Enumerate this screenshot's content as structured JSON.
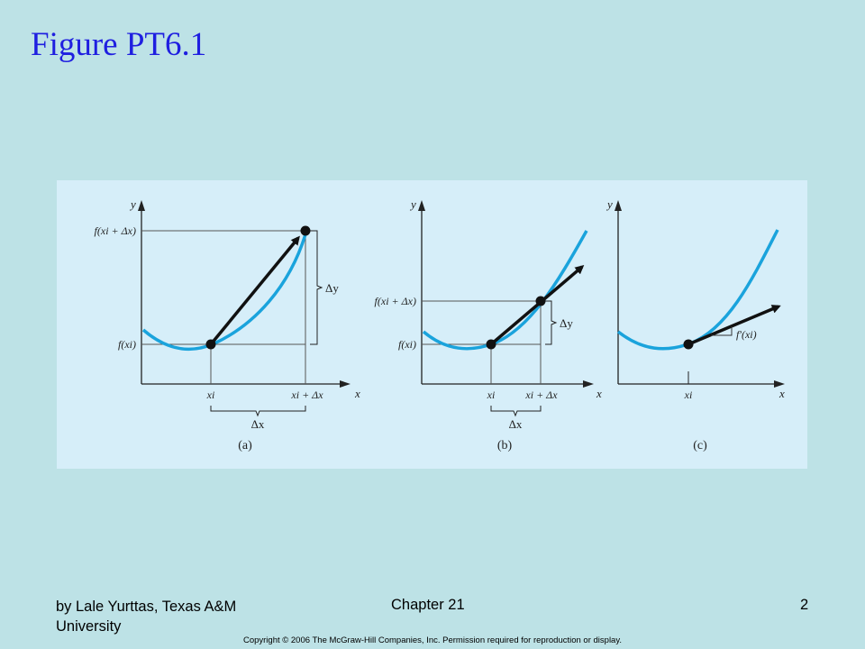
{
  "slide": {
    "title": "Figure PT6.1",
    "footer": {
      "author": "by Lale Yurttas, Texas A&M University",
      "chapter": "Chapter 21",
      "page": "2"
    },
    "copyright": "Copyright © 2006 The McGraw-Hill Companies, Inc. Permission required for reproduction or display."
  },
  "figure": {
    "colors": {
      "curve": "#1aa3dc",
      "ink": "#111111",
      "panel_bg": "#d6eef9"
    },
    "panel_a": {
      "caption": "(a)",
      "axis_x": "x",
      "axis_y": "y",
      "y_tick_top": "f(xi + Δx)",
      "y_tick_bottom": "f(xi)",
      "x_tick_left": "xi",
      "x_tick_right": "xi + Δx",
      "delta_x": "Δx",
      "delta_y": "Δy"
    },
    "panel_b": {
      "caption": "(b)",
      "axis_x": "x",
      "axis_y": "y",
      "y_tick_top": "f(xi + Δx)",
      "y_tick_bottom": "f(xi)",
      "x_tick_left": "xi",
      "x_tick_right": "xi + Δx",
      "delta_x": "Δx",
      "delta_y": "Δy"
    },
    "panel_c": {
      "caption": "(c)",
      "axis_x": "x",
      "axis_y": "y",
      "x_tick": "xi",
      "slope_label": "f′(xi)"
    }
  }
}
